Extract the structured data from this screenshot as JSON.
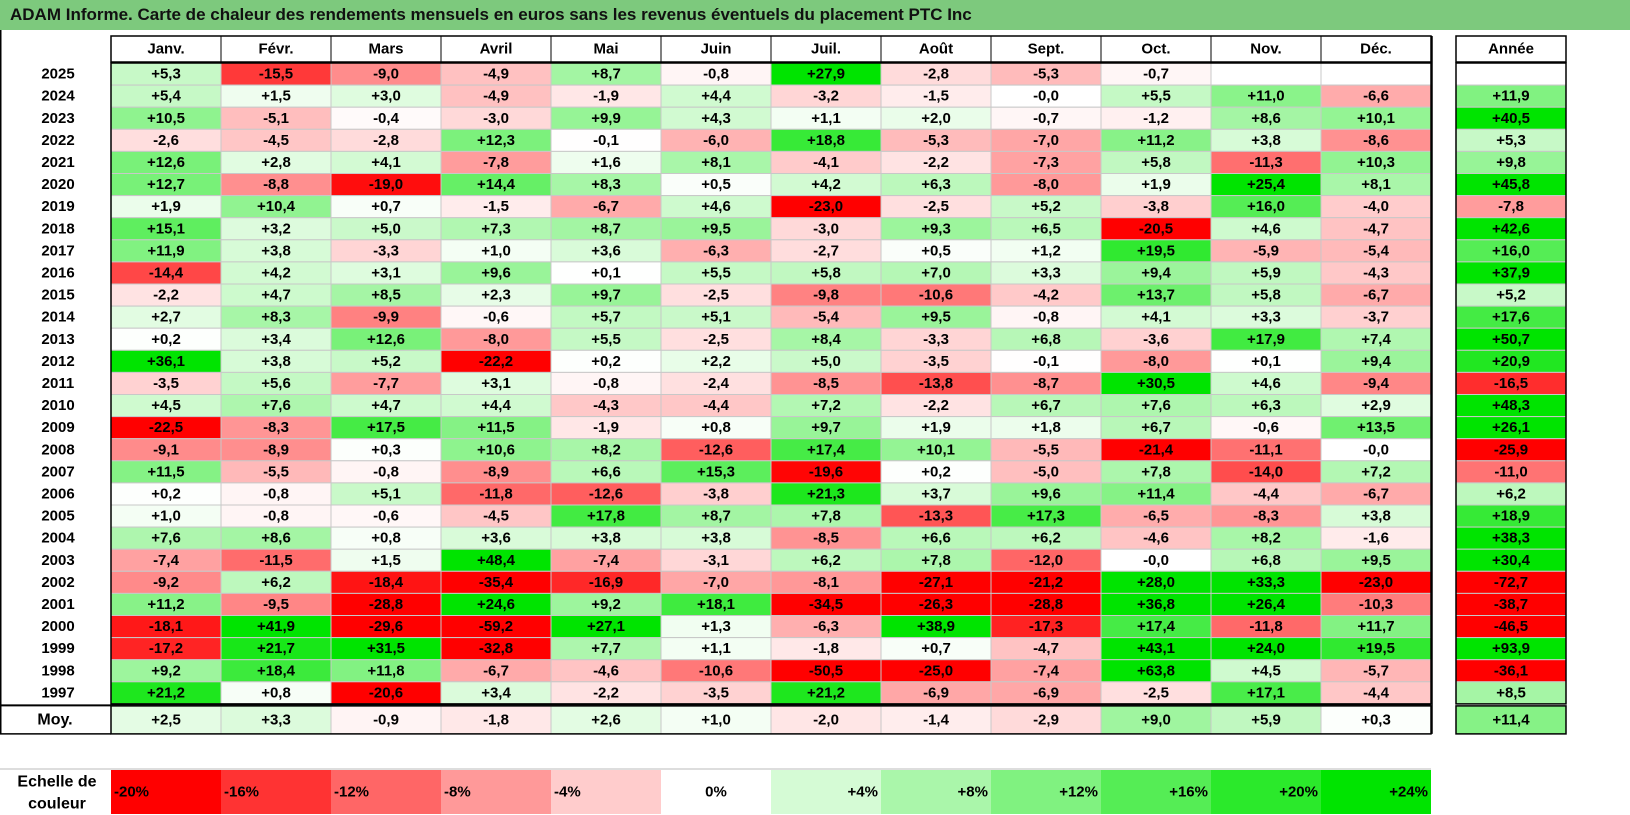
{
  "title": "ADAM Informe. Carte de chaleur des rendements mensuels en euros sans les revenus éventuels du placement PTC Inc",
  "chart_data": {
    "type": "heatmap",
    "months": [
      "Janv.",
      "Févr.",
      "Mars",
      "Avril",
      "Mai",
      "Juin",
      "Juil.",
      "Août",
      "Sept.",
      "Oct.",
      "Nov.",
      "Déc."
    ],
    "year_header": "Année",
    "rows": [
      {
        "label": "2025",
        "values": [
          "+5,3",
          "-15,5",
          "-9,0",
          "-4,9",
          "+8,7",
          "-0,8",
          "+27,9",
          "-2,8",
          "-5,3",
          "-0,7",
          "",
          ""
        ],
        "year": ""
      },
      {
        "label": "2024",
        "values": [
          "+5,4",
          "+1,5",
          "+3,0",
          "-4,9",
          "-1,9",
          "+4,4",
          "-3,2",
          "-1,5",
          "-0,0",
          "+5,5",
          "+11,0",
          "-6,6"
        ],
        "year": "+11,9"
      },
      {
        "label": "2023",
        "values": [
          "+10,5",
          "-5,1",
          "-0,4",
          "-3,0",
          "+9,9",
          "+4,3",
          "+1,1",
          "+2,0",
          "-0,7",
          "-1,2",
          "+8,6",
          "+10,1"
        ],
        "year": "+40,5"
      },
      {
        "label": "2022",
        "values": [
          "-2,6",
          "-4,5",
          "-2,8",
          "+12,3",
          "-0,1",
          "-6,0",
          "+18,8",
          "-5,3",
          "-7,0",
          "+11,2",
          "+3,8",
          "-8,6"
        ],
        "year": "+5,3"
      },
      {
        "label": "2021",
        "values": [
          "+12,6",
          "+2,8",
          "+4,1",
          "-7,8",
          "+1,6",
          "+8,1",
          "-4,1",
          "-2,2",
          "-7,3",
          "+5,8",
          "-11,3",
          "+10,3"
        ],
        "year": "+9,8"
      },
      {
        "label": "2020",
        "values": [
          "+12,7",
          "-8,8",
          "-19,0",
          "+14,4",
          "+8,3",
          "+0,5",
          "+4,2",
          "+6,3",
          "-8,0",
          "+1,9",
          "+25,4",
          "+8,1"
        ],
        "year": "+45,8"
      },
      {
        "label": "2019",
        "values": [
          "+1,9",
          "+10,4",
          "+0,7",
          "-1,5",
          "-6,7",
          "+4,6",
          "-23,0",
          "-2,5",
          "+5,2",
          "-3,8",
          "+16,0",
          "-4,0"
        ],
        "year": "-7,8"
      },
      {
        "label": "2018",
        "values": [
          "+15,1",
          "+3,2",
          "+5,0",
          "+7,3",
          "+8,7",
          "+9,5",
          "-3,0",
          "+9,3",
          "+6,5",
          "-20,5",
          "+4,6",
          "-4,7"
        ],
        "year": "+42,6"
      },
      {
        "label": "2017",
        "values": [
          "+11,9",
          "+3,8",
          "-3,3",
          "+1,0",
          "+3,6",
          "-6,3",
          "-2,7",
          "+0,5",
          "+1,2",
          "+19,5",
          "-5,9",
          "-5,4"
        ],
        "year": "+16,0"
      },
      {
        "label": "2016",
        "values": [
          "-14,4",
          "+4,2",
          "+3,1",
          "+9,6",
          "+0,1",
          "+5,5",
          "+5,8",
          "+7,0",
          "+3,3",
          "+9,4",
          "+5,9",
          "-4,3"
        ],
        "year": "+37,9"
      },
      {
        "label": "2015",
        "values": [
          "-2,2",
          "+4,7",
          "+8,5",
          "+2,3",
          "+9,7",
          "-2,5",
          "-9,8",
          "-10,6",
          "-4,2",
          "+13,7",
          "+5,8",
          "-6,7"
        ],
        "year": "+5,2"
      },
      {
        "label": "2014",
        "values": [
          "+2,7",
          "+8,3",
          "-9,9",
          "-0,6",
          "+5,7",
          "+5,1",
          "-5,4",
          "+9,5",
          "-0,8",
          "+4,1",
          "+3,3",
          "-3,7"
        ],
        "year": "+17,6"
      },
      {
        "label": "2013",
        "values": [
          "+0,2",
          "+3,4",
          "+12,6",
          "-8,0",
          "+5,5",
          "-2,5",
          "+8,4",
          "-3,3",
          "+6,8",
          "-3,6",
          "+17,9",
          "+7,4"
        ],
        "year": "+50,7"
      },
      {
        "label": "2012",
        "values": [
          "+36,1",
          "+3,8",
          "+5,2",
          "-22,2",
          "+0,2",
          "+2,2",
          "+5,0",
          "-3,5",
          "-0,1",
          "-8,0",
          "+0,1",
          "+9,4"
        ],
        "year": "+20,9"
      },
      {
        "label": "2011",
        "values": [
          "-3,5",
          "+5,6",
          "-7,7",
          "+3,1",
          "-0,8",
          "-2,4",
          "-8,5",
          "-13,8",
          "-8,7",
          "+30,5",
          "+4,6",
          "-9,4"
        ],
        "year": "-16,5"
      },
      {
        "label": "2010",
        "values": [
          "+4,5",
          "+7,6",
          "+4,7",
          "+4,4",
          "-4,3",
          "-4,4",
          "+7,2",
          "-2,2",
          "+6,7",
          "+7,6",
          "+6,3",
          "+2,9"
        ],
        "year": "+48,3"
      },
      {
        "label": "2009",
        "values": [
          "-22,5",
          "-8,3",
          "+17,5",
          "+11,5",
          "-1,9",
          "+0,8",
          "+9,7",
          "+1,9",
          "+1,8",
          "+6,7",
          "-0,6",
          "+13,5"
        ],
        "year": "+26,1"
      },
      {
        "label": "2008",
        "values": [
          "-9,1",
          "-8,9",
          "+0,3",
          "+10,6",
          "+8,2",
          "-12,6",
          "+17,4",
          "+10,1",
          "-5,5",
          "-21,4",
          "-11,1",
          "-0,0"
        ],
        "year": "-25,9"
      },
      {
        "label": "2007",
        "values": [
          "+11,5",
          "-5,5",
          "-0,8",
          "-8,9",
          "+6,6",
          "+15,3",
          "-19,6",
          "+0,2",
          "-5,0",
          "+7,8",
          "-14,0",
          "+7,2"
        ],
        "year": "-11,0"
      },
      {
        "label": "2006",
        "values": [
          "+0,2",
          "-0,8",
          "+5,1",
          "-11,8",
          "-12,6",
          "-3,8",
          "+21,3",
          "+3,7",
          "+9,6",
          "+11,4",
          "-4,4",
          "-6,7"
        ],
        "year": "+6,2"
      },
      {
        "label": "2005",
        "values": [
          "+1,0",
          "-0,8",
          "-0,6",
          "-4,5",
          "+17,8",
          "+8,7",
          "+7,8",
          "-13,3",
          "+17,3",
          "-6,5",
          "-8,3",
          "+3,8"
        ],
        "year": "+18,9"
      },
      {
        "label": "2004",
        "values": [
          "+7,6",
          "+8,6",
          "+0,8",
          "+3,6",
          "+3,8",
          "+3,8",
          "-8,5",
          "+6,6",
          "+6,2",
          "-4,6",
          "+8,2",
          "-1,6"
        ],
        "year": "+38,3"
      },
      {
        "label": "2003",
        "values": [
          "-7,4",
          "-11,5",
          "+1,5",
          "+48,4",
          "-7,4",
          "-3,1",
          "+6,2",
          "+7,8",
          "-12,0",
          "-0,0",
          "+6,8",
          "+9,5"
        ],
        "year": "+30,4"
      },
      {
        "label": "2002",
        "values": [
          "-9,2",
          "+6,2",
          "-18,4",
          "-35,4",
          "-16,9",
          "-7,0",
          "-8,1",
          "-27,1",
          "-21,2",
          "+28,0",
          "+33,3",
          "-23,0"
        ],
        "year": "-72,7"
      },
      {
        "label": "2001",
        "values": [
          "+11,2",
          "-9,5",
          "-28,8",
          "+24,6",
          "+9,2",
          "+18,1",
          "-34,5",
          "-26,3",
          "-28,8",
          "+36,8",
          "+26,4",
          "-10,3"
        ],
        "year": "-38,7"
      },
      {
        "label": "2000",
        "values": [
          "-18,1",
          "+41,9",
          "-29,6",
          "-59,2",
          "+27,1",
          "+1,3",
          "-6,3",
          "+38,9",
          "-17,3",
          "+17,4",
          "-11,8",
          "+11,7"
        ],
        "year": "-46,5"
      },
      {
        "label": "1999",
        "values": [
          "-17,2",
          "+21,7",
          "+31,5",
          "-32,8",
          "+7,7",
          "+1,1",
          "-1,8",
          "+0,7",
          "-4,7",
          "+43,1",
          "+24,0",
          "+19,5"
        ],
        "year": "+93,9"
      },
      {
        "label": "1998",
        "values": [
          "+9,2",
          "+18,4",
          "+11,8",
          "-6,7",
          "-4,6",
          "-10,6",
          "-50,5",
          "-25,0",
          "-7,4",
          "+63,8",
          "+4,5",
          "-5,7"
        ],
        "year": "-36,1"
      },
      {
        "label": "1997",
        "values": [
          "+21,2",
          "+0,8",
          "-20,6",
          "+3,4",
          "-2,2",
          "-3,5",
          "+21,2",
          "-6,9",
          "-6,9",
          "-2,5",
          "+17,1",
          "-4,4"
        ],
        "year": "+8,5"
      }
    ],
    "avg": {
      "label": "Moy.",
      "values": [
        "+2,5",
        "+3,3",
        "-0,9",
        "-1,8",
        "+2,6",
        "+1,0",
        "-2,0",
        "-1,4",
        "-2,9",
        "+9,0",
        "+5,9",
        "+0,3"
      ],
      "year": "+11,4"
    },
    "scale": {
      "label_lines": [
        "Echelle de",
        "couleur"
      ],
      "stops": [
        {
          "label": "-20%",
          "value": -20
        },
        {
          "label": "-16%",
          "value": -16
        },
        {
          "label": "-12%",
          "value": -12
        },
        {
          "label": "-8%",
          "value": -8
        },
        {
          "label": "-4%",
          "value": -4
        },
        {
          "label": "0%",
          "value": 0
        },
        {
          "label": "+4%",
          "value": 4
        },
        {
          "label": "+8%",
          "value": 8
        },
        {
          "label": "+12%",
          "value": 12
        },
        {
          "label": "+16%",
          "value": 16
        },
        {
          "label": "+20%",
          "value": 20
        },
        {
          "label": "+24%",
          "value": 24
        }
      ]
    },
    "colors": {
      "negative_max": "#ff0000",
      "positive_max": "#00e400",
      "neutral": "#ffffff",
      "title_bar": "#7dc97d"
    }
  }
}
